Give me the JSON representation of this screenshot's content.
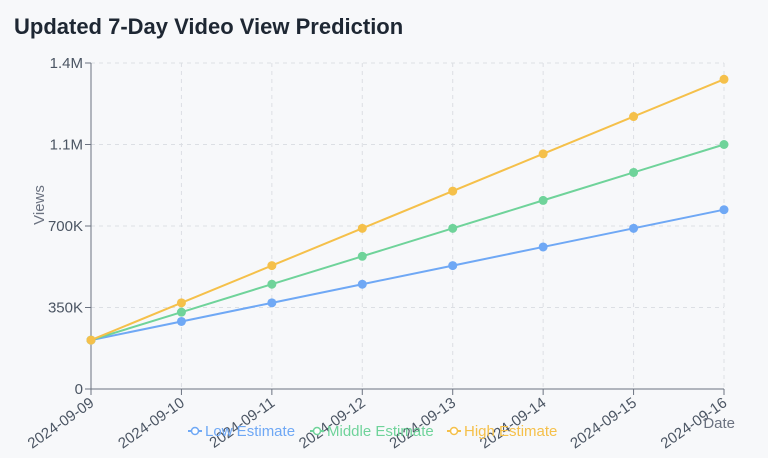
{
  "header": {
    "title": "Updated 7-Day Video View Prediction"
  },
  "chart_data": {
    "type": "line",
    "title": "Updated 7-Day Video View Prediction",
    "xlabel": "Date",
    "ylabel": "Views",
    "x": [
      "2024-09-09",
      "2024-09-10",
      "2024-09-11",
      "2024-09-12",
      "2024-09-13",
      "2024-09-14",
      "2024-09-15",
      "2024-09-16"
    ],
    "y_ticks": [
      "0",
      "350K",
      "700K",
      "1.1M",
      "1.4M"
    ],
    "ylim": [
      0,
      1400000
    ],
    "grid": true,
    "legend": "bottom",
    "series": [
      {
        "name": "Low Estimate",
        "color": "#6fa8f5",
        "values": [
          210000,
          290000,
          370000,
          450000,
          530000,
          610000,
          690000,
          770000
        ]
      },
      {
        "name": "Middle Estimate",
        "color": "#6fd39a",
        "values": [
          210000,
          330000,
          450000,
          570000,
          690000,
          810000,
          930000,
          1050000
        ]
      },
      {
        "name": "High Estimate",
        "color": "#f5c04a",
        "values": [
          210000,
          370000,
          530000,
          690000,
          850000,
          1010000,
          1170000,
          1330000
        ]
      }
    ]
  }
}
